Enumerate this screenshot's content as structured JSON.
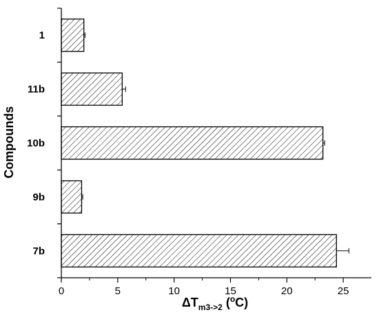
{
  "chart_data": {
    "type": "bar",
    "orientation": "horizontal",
    "title": "",
    "categories": [
      "1",
      "11b",
      "10b",
      "9b",
      "7b"
    ],
    "values": [
      2.0,
      5.4,
      23.2,
      1.8,
      24.4
    ],
    "errors": [
      0.1,
      0.3,
      0.15,
      0.1,
      1.1
    ],
    "xlabel": {
      "prefix": "ΔT",
      "subscript": "m3->2",
      "middle": " (",
      "superscript": "o",
      "suffix": "C)"
    },
    "ylabel": "Compounds",
    "xlim": [
      0,
      27.5
    ],
    "xticks": [
      0,
      5,
      10,
      15,
      20,
      25
    ],
    "grid": false,
    "bar_fill": "hatched",
    "color": "#000000"
  }
}
